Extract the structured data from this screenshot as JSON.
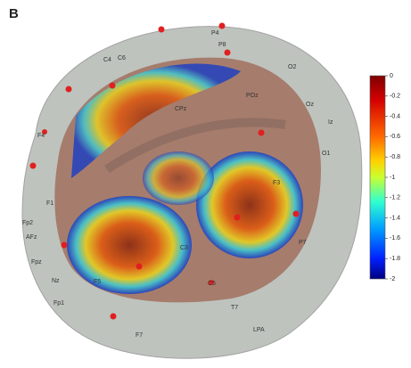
{
  "panel_label": "B",
  "electrodes": [
    "P4",
    "P8",
    "C4",
    "C6",
    "O2",
    "POz",
    "Oz",
    "Iz",
    "CPz",
    "F4",
    "O1",
    "F3",
    "F1",
    "Fp2",
    "AFz",
    "P7",
    "Fpz",
    "C3",
    "Nz",
    "F5",
    "Fp1",
    "C5",
    "T7",
    "LPA",
    "F7"
  ],
  "colorbar": {
    "range": [
      -2,
      0
    ],
    "ticks": [
      0,
      -0.2,
      -0.4,
      -0.6,
      -0.8,
      -1,
      -1.2,
      -1.4,
      -1.6,
      -1.8,
      -2
    ]
  }
}
